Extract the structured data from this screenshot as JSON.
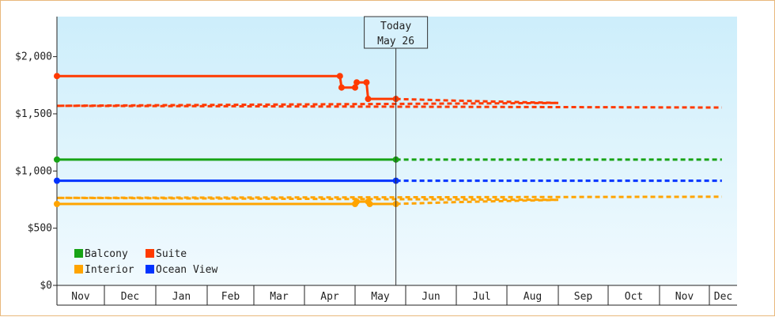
{
  "chart_data": {
    "type": "line",
    "today_label": [
      "Today",
      "May 26"
    ],
    "y_ticks": [
      "$0",
      "$500",
      "$1,000",
      "$1,500",
      "$2,000"
    ],
    "y_tick_values": [
      0,
      500,
      1000,
      1500,
      2000
    ],
    "ylim": [
      0,
      2350
    ],
    "months": [
      "Nov",
      "Dec",
      "Jan",
      "Feb",
      "Mar",
      "Apr",
      "May",
      "Jun",
      "Jul",
      "Aug",
      "Sep",
      "Oct",
      "Nov",
      "Dec"
    ],
    "legend": [
      {
        "name": "Balcony",
        "color": "#17a315"
      },
      {
        "name": "Suite",
        "color": "#ff3a00"
      },
      {
        "name": "Interior",
        "color": "#ffa400"
      },
      {
        "name": "Ocean View",
        "color": "#0033ff"
      }
    ],
    "series": [
      {
        "name": "Suite",
        "color": "#ff3a00",
        "history": [
          [
            "Nov 1",
            1830
          ],
          [
            "Apr 22",
            1830
          ],
          [
            "Apr 23",
            1730
          ],
          [
            "May 1",
            1730
          ],
          [
            "May 2",
            1775
          ],
          [
            "May 8",
            1775
          ],
          [
            "May 9",
            1630
          ],
          [
            "May 26",
            1630
          ]
        ],
        "forecast": [
          [
            "May 26",
            1630
          ],
          [
            "Jul 1",
            1615
          ],
          [
            "Sep 1",
            1595
          ],
          [
            "Nov 1",
            1570
          ],
          [
            "Dec 15",
            1555
          ]
        ]
      },
      {
        "name": "Balcony",
        "color": "#17a315",
        "history": [
          [
            "Nov 1",
            1100
          ],
          [
            "May 26",
            1100
          ]
        ],
        "forecast": [
          [
            "May 26",
            1100
          ],
          [
            "Dec 15",
            1100
          ]
        ]
      },
      {
        "name": "Ocean View",
        "color": "#0033ff",
        "history": [
          [
            "Nov 1",
            915
          ],
          [
            "May 26",
            915
          ]
        ],
        "forecast": [
          [
            "May 26",
            915
          ],
          [
            "Dec 15",
            915
          ]
        ]
      },
      {
        "name": "Interior",
        "color": "#ffa400",
        "history": [
          [
            "Nov 1",
            712
          ],
          [
            "May 1",
            712
          ],
          [
            "May 2",
            732
          ],
          [
            "May 9",
            732
          ],
          [
            "May 10",
            712
          ],
          [
            "May 26",
            712
          ]
        ],
        "forecast": [
          [
            "May 26",
            712
          ],
          [
            "Jul 1",
            728
          ],
          [
            "Sep 1",
            748
          ],
          [
            "Nov 1",
            765
          ],
          [
            "Dec 15",
            775
          ]
        ]
      }
    ]
  }
}
